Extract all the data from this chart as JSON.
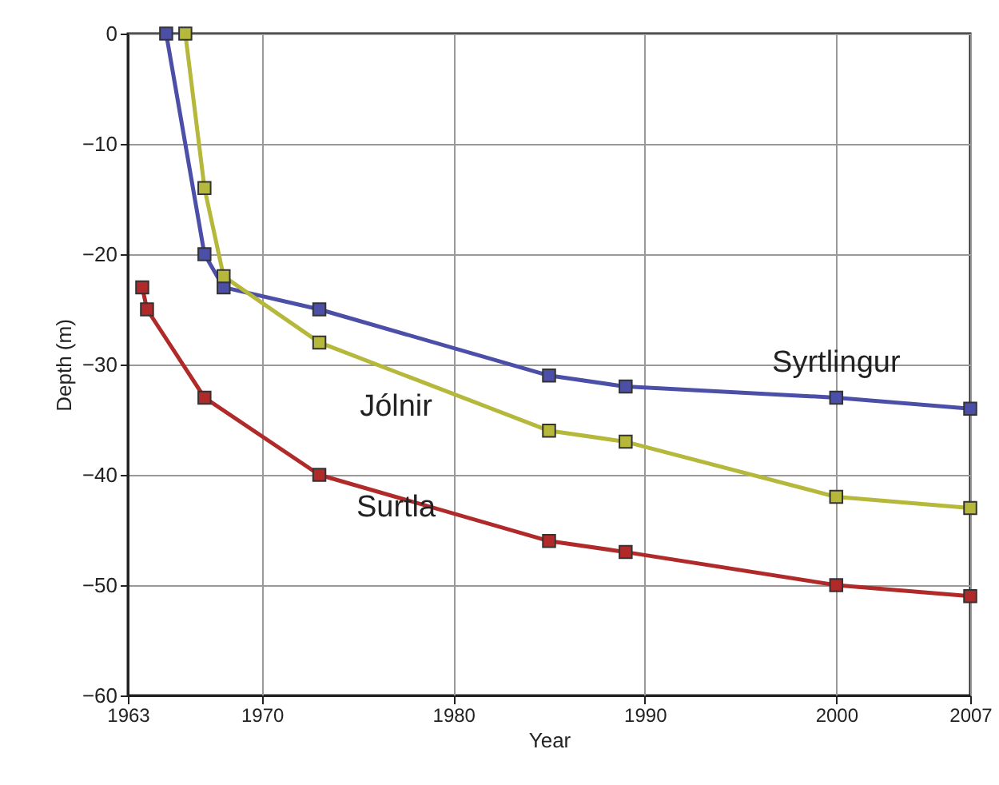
{
  "chart_data": {
    "type": "line",
    "xlabel": "Year",
    "ylabel": "Depth (m)",
    "xlim": [
      1963,
      2007
    ],
    "xticks": [
      1963,
      1970,
      1980,
      1990,
      2000,
      2007
    ],
    "ylim": [
      -60,
      0
    ],
    "yticks": [
      -60,
      -50,
      -40,
      -30,
      -20,
      -10,
      0
    ],
    "grid": true,
    "marker": "square",
    "line_style": "solid",
    "legend": false,
    "series": [
      {
        "name": "Syrtlingur",
        "color": "#4b4fa8",
        "x": [
          1965,
          1967,
          1968,
          1973,
          1985,
          1989,
          2000,
          2007
        ],
        "values": [
          0,
          -20,
          -23,
          -25,
          -31,
          -32,
          -33,
          -34
        ]
      },
      {
        "name": "Jólnir",
        "color": "#b5b83a",
        "x": [
          1966,
          1967,
          1968,
          1973,
          1985,
          1989,
          2000,
          2007
        ],
        "values": [
          0,
          -14,
          -22,
          -28,
          -36,
          -37,
          -42,
          -43
        ]
      },
      {
        "name": "Surtla",
        "color": "#b02a2a",
        "x": [
          1963.75,
          1964,
          1967,
          1973,
          1985,
          1989,
          2000,
          2007
        ],
        "values": [
          -23,
          -25,
          -33,
          -40,
          -46,
          -47,
          -50,
          -51
        ]
      }
    ]
  }
}
